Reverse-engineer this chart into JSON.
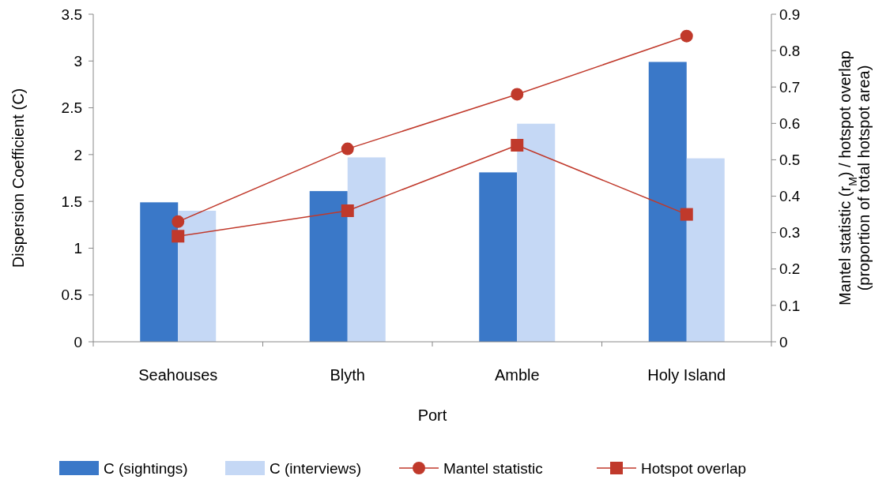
{
  "chart_data": {
    "type": "bar",
    "xlabel": "Port",
    "ylabel": "Dispersion Coefficient (C)",
    "y2label": "Mantel statistic (r$_{M}$) / hotspot overlap (proportion of total hotspot area)",
    "categories": [
      "Seahouses",
      "Blyth",
      "Amble",
      "Holy Island"
    ],
    "series": [
      {
        "name": "C (sightings)",
        "color": "#3a78c8",
        "values": [
          1.49,
          1.61,
          1.81,
          2.99
        ]
      },
      {
        "name": "C (interviews)",
        "color": "#c5d8f5",
        "values": [
          1.4,
          1.97,
          2.33,
          1.96
        ]
      },
      {
        "name": "Mantel statistic",
        "type": "line",
        "axis": "y2",
        "marker": "circle",
        "color": "#c0392b",
        "values": [
          0.33,
          0.53,
          0.68,
          0.84
        ]
      },
      {
        "name": "Hotspot overlap",
        "type": "line",
        "axis": "y2",
        "marker": "square",
        "color": "#c0392b",
        "values": [
          0.29,
          0.36,
          0.54,
          0.35
        ]
      }
    ],
    "ylim": [
      0,
      3.5
    ],
    "yticks": [
      0,
      0.5,
      1,
      1.5,
      2,
      2.5,
      3,
      3.5
    ],
    "y2lim": [
      0,
      0.9
    ],
    "y2ticks": [
      0,
      0.1,
      0.2,
      0.3,
      0.4,
      0.5,
      0.6,
      0.7,
      0.8,
      0.9
    ],
    "grid": false,
    "legend": "bottom"
  }
}
